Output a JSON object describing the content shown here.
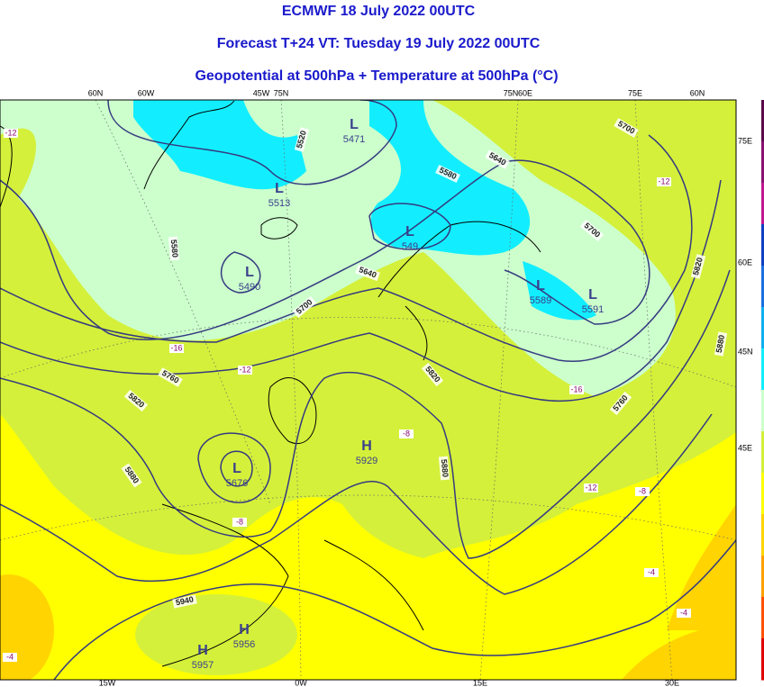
{
  "header": {
    "title": "ECMWF 18 July 2022 00UTC",
    "subtitle": "Forecast T+24 VT: Tuesday 19 July 2022 00UTC",
    "field": "Geopotential at 500hPa + Temperature at 500hPa (°C)"
  },
  "map": {
    "top_labels": [
      "60N",
      "60W",
      "45W",
      "75N",
      "75N",
      "60E",
      "75E",
      "60N"
    ],
    "bottom_labels": [
      "15W",
      "0W",
      "15E",
      "30E"
    ],
    "right_labels": [
      "75E",
      "60E",
      "45N",
      "45E"
    ],
    "contour_labels": [
      5520,
      5580,
      5640,
      5700,
      5700,
      5580,
      5640,
      5700,
      5760,
      5820,
      5880,
      5820,
      5880,
      5760,
      5820,
      5880,
      5940
    ],
    "centers": [
      {
        "symbol": "L",
        "value": 5471
      },
      {
        "symbol": "L",
        "value": 5513
      },
      {
        "symbol": "L",
        "value": 5490
      },
      {
        "symbol": "L",
        "value": 549
      },
      {
        "symbol": "L",
        "value": 5589
      },
      {
        "symbol": "L",
        "value": 5591
      },
      {
        "symbol": "L",
        "value": 5676
      },
      {
        "symbol": "H",
        "value": 5929
      },
      {
        "symbol": "H",
        "value": 5956
      },
      {
        "symbol": "H",
        "value": 5957
      }
    ],
    "temperature_labels": [
      -12,
      -12,
      -16,
      -12,
      -16,
      -8,
      -12,
      -8,
      -8,
      -4,
      -4,
      -4
    ]
  }
}
